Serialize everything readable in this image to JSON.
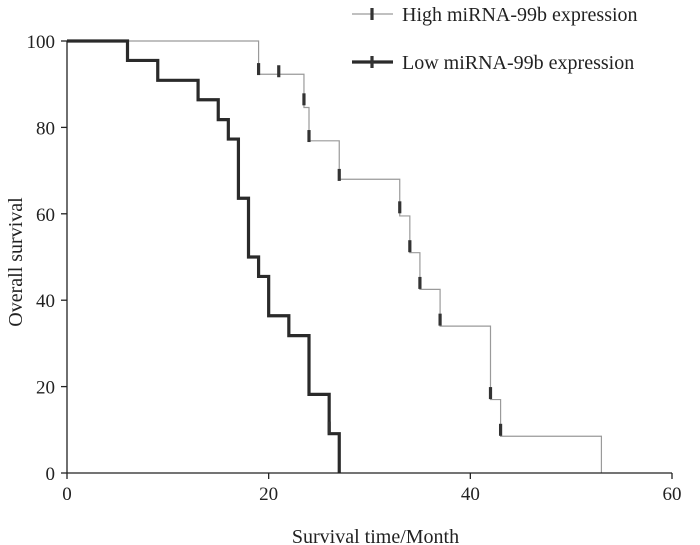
{
  "chart_data": {
    "type": "line",
    "subtype": "kaplan-meier-step",
    "title": "",
    "xlabel": "Survival time/Month",
    "ylabel": "Overall survival",
    "xlim": [
      0,
      60
    ],
    "ylim": [
      0,
      100
    ],
    "xticks": [
      0,
      20,
      40,
      60
    ],
    "yticks": [
      0,
      20,
      40,
      60,
      80,
      100
    ],
    "grid": false,
    "legend_position": "top-right",
    "series": [
      {
        "name": "High miRNA-99b expression",
        "color": "#9a9a9a",
        "style": "thin",
        "steps": [
          [
            0,
            100
          ],
          [
            19,
            92.3
          ],
          [
            23.5,
            84.6
          ],
          [
            24,
            76.9
          ],
          [
            27,
            68
          ],
          [
            33,
            59.5
          ],
          [
            34,
            51
          ],
          [
            35,
            42.5
          ],
          [
            37,
            34
          ],
          [
            42,
            17
          ],
          [
            43,
            8.5
          ],
          [
            53,
            8.5
          ],
          [
            53,
            0
          ]
        ],
        "censored": [
          [
            19,
            93.5
          ],
          [
            21,
            93
          ],
          [
            23.5,
            86.5
          ],
          [
            24,
            78
          ],
          [
            27,
            69
          ],
          [
            33,
            61.5
          ],
          [
            34,
            52.5
          ],
          [
            35,
            44
          ],
          [
            37,
            35.5
          ],
          [
            42,
            18.5
          ],
          [
            43,
            10
          ]
        ]
      },
      {
        "name": "Low miRNA-99b expression",
        "color": "#2a2a2a",
        "style": "thick",
        "steps": [
          [
            0,
            100
          ],
          [
            6,
            95.5
          ],
          [
            9,
            90.9
          ],
          [
            13,
            86.4
          ],
          [
            15,
            81.8
          ],
          [
            16,
            77.3
          ],
          [
            17,
            63.6
          ],
          [
            18,
            50
          ],
          [
            19,
            45.5
          ],
          [
            20,
            36.4
          ],
          [
            22,
            31.8
          ],
          [
            24,
            18.2
          ],
          [
            26,
            9.1
          ],
          [
            27,
            0
          ]
        ],
        "censored": [
          [
            26,
            10.5
          ]
        ]
      }
    ]
  }
}
